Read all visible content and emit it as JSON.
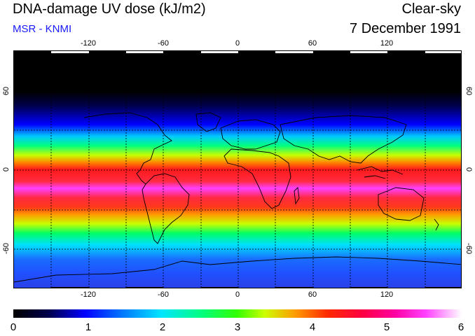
{
  "header": {
    "title": "DNA-damage UV dose (kJ/m2)",
    "subtitle": "MSR - KNMI",
    "sky_mode": "Clear-sky",
    "date": "7 December 1991"
  },
  "map": {
    "lon_ticks": [
      "-120",
      "-60",
      "0",
      "60",
      "120"
    ],
    "lon_values": [
      -120,
      -60,
      0,
      60,
      120
    ],
    "lat_ticks_left": [
      "60",
      "0",
      "-60"
    ],
    "lat_ticks_right": [
      "60",
      "0",
      "-60"
    ],
    "lat_values": [
      60,
      0,
      -60
    ],
    "lon_range": [
      -180,
      180
    ],
    "lat_range": [
      -90,
      90
    ],
    "gridline_lons": [
      -150,
      -120,
      -90,
      -60,
      -30,
      0,
      30,
      60,
      90,
      120,
      150
    ],
    "gridline_lats": [
      60,
      30,
      0,
      -30,
      -60
    ]
  },
  "colorbar": {
    "labels": [
      "0",
      "1",
      "2",
      "3",
      "4",
      "5",
      "6"
    ],
    "min": 0,
    "max": 6,
    "units": "kJ/m2"
  }
}
